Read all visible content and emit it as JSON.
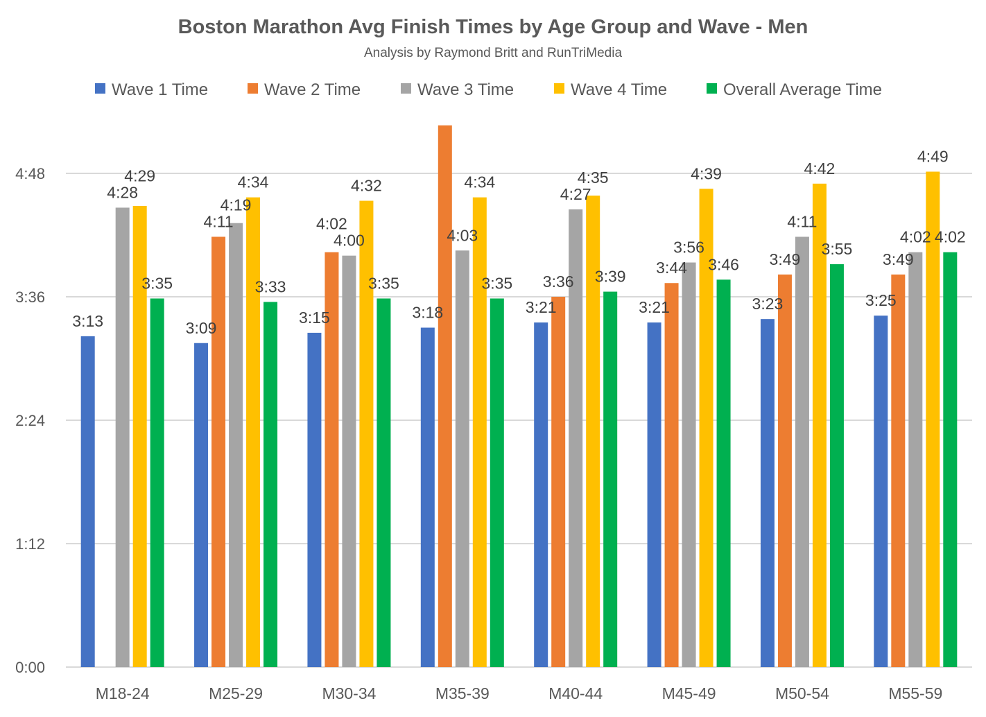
{
  "chart_data": {
    "type": "bar",
    "title": "Boston Marathon Avg Finish Times by Age Group and Wave - Men",
    "subtitle": "Analysis by Raymond Britt and RunTriMedia",
    "xlabel": "",
    "ylabel": "",
    "ylim": [
      "0:00",
      "5:24"
    ],
    "yticks": [
      "0:00",
      "1:12",
      "2:24",
      "3:36",
      "4:48"
    ],
    "grid": true,
    "legend_position": "top",
    "categories": [
      "M18-24",
      "M25-29",
      "M30-34",
      "M35-39",
      "M40-44",
      "M45-49",
      "M50-54",
      "M55-59"
    ],
    "series": [
      {
        "name": "Wave 1 Time",
        "color": "#4472C4",
        "values": [
          "3:13",
          "3:09",
          "3:15",
          "3:18",
          "3:21",
          "3:21",
          "3:23",
          "3:25"
        ],
        "labels": [
          "3:13",
          "3:09",
          "3:15",
          "3:18",
          "3:21",
          "3:21",
          "3:23",
          "3:25"
        ]
      },
      {
        "name": "Wave 2 Time",
        "color": "#ED7D31",
        "values": [
          null,
          "4:11",
          "4:02",
          "5:16",
          "3:36",
          "3:44",
          "3:49",
          "3:49"
        ],
        "labels": [
          null,
          "4:11",
          "4:02",
          null,
          "3:36",
          "3:44",
          "3:49",
          "3:49"
        ]
      },
      {
        "name": "Wave 3 Time",
        "color": "#A5A5A5",
        "values": [
          "4:28",
          "4:19",
          "4:00",
          "4:03",
          "4:27",
          "3:56",
          "4:11",
          "4:02"
        ],
        "labels": [
          "4:28",
          "4:19",
          "4:00",
          "4:03",
          "4:27",
          "3:56",
          "4:11",
          "4:02"
        ]
      },
      {
        "name": "Wave 4 Time",
        "color": "#FFC000",
        "values": [
          "4:29",
          "4:34",
          "4:32",
          "4:34",
          "4:35",
          "4:39",
          "4:42",
          "4:49"
        ],
        "labels": [
          "4:29",
          "4:34",
          "4:32",
          "4:34",
          "4:35",
          "4:39",
          "4:42",
          "4:49"
        ]
      },
      {
        "name": "Overall Average Time",
        "color": "#00B050",
        "values": [
          "3:35",
          "3:33",
          "3:35",
          "3:35",
          "3:39",
          "3:46",
          "3:55",
          "4:02"
        ],
        "labels": [
          "3:35",
          "3:33",
          "3:35",
          "3:35",
          "3:39",
          "3:46",
          "3:55",
          "4:02"
        ]
      }
    ]
  }
}
